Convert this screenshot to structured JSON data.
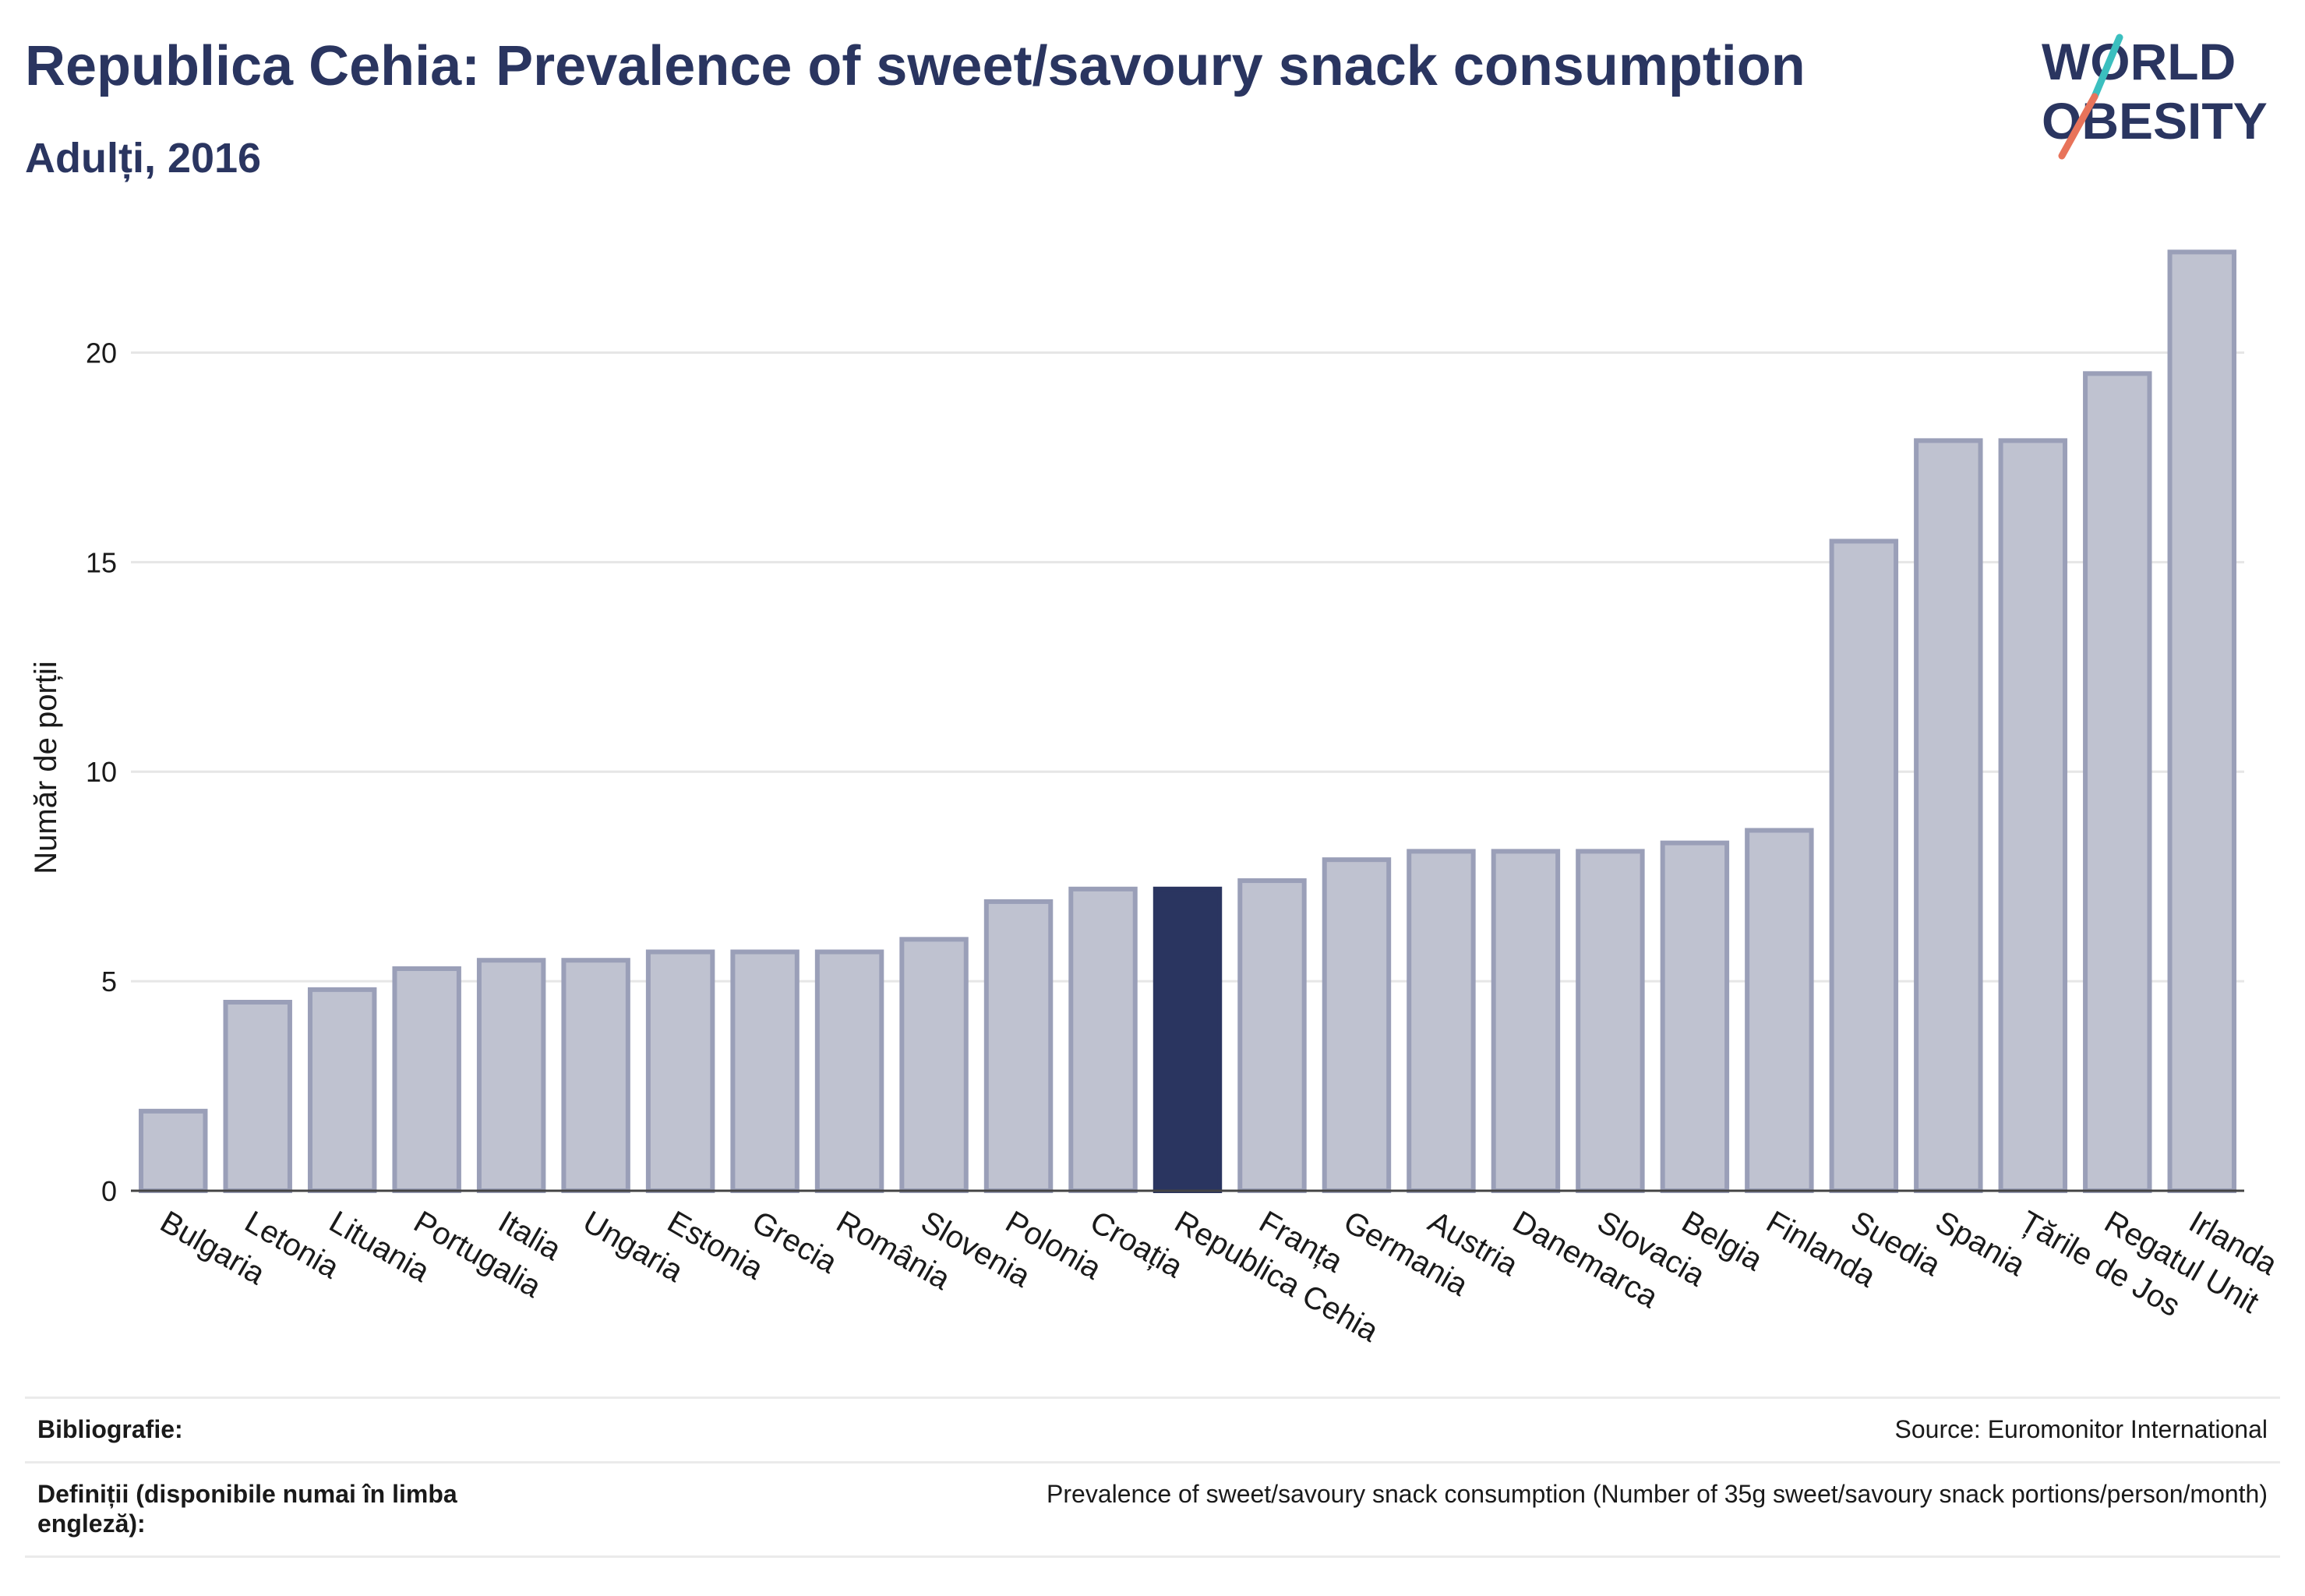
{
  "header": {
    "title": "Republica Cehia: Prevalence of sweet/savoury snack consumption",
    "subtitle": "Adulți, 2016"
  },
  "logo": {
    "line1": "WORLD",
    "line2": "OBESITY",
    "accent_colors": [
      "#3bbfbf",
      "#e8735a"
    ]
  },
  "colors": {
    "bar_default": "#bfc2d0",
    "bar_border": "#9a9fb8",
    "bar_highlight": "#2a3560",
    "text_primary": "#2a3560",
    "grid": "#e6e6e6"
  },
  "chart_data": {
    "type": "bar",
    "title": "Republica Cehia: Prevalence of sweet/savoury snack consumption",
    "subtitle": "Adulți, 2016",
    "ylabel": "Număr de porții",
    "xlabel": "",
    "ylim": [
      0,
      22.5
    ],
    "yticks": [
      0,
      5,
      10,
      15,
      20
    ],
    "grid": true,
    "highlight": "Republica Cehia",
    "categories": [
      "Bulgaria",
      "Letonia",
      "Lituania",
      "Portugalia",
      "Italia",
      "Ungaria",
      "Estonia",
      "Grecia",
      "România",
      "Slovenia",
      "Polonia",
      "Croația",
      "Republica Cehia",
      "Franța",
      "Germania",
      "Austria",
      "Danemarca",
      "Slovacia",
      "Belgia",
      "Finlanda",
      "Suedia",
      "Spania",
      "Țările de Jos",
      "Regatul Unit",
      "Irlanda"
    ],
    "values": [
      1.9,
      4.5,
      4.8,
      5.3,
      5.5,
      5.5,
      5.7,
      5.7,
      5.7,
      6.0,
      6.9,
      7.2,
      7.2,
      7.4,
      7.9,
      8.1,
      8.1,
      8.1,
      8.3,
      8.6,
      15.5,
      17.9,
      17.9,
      19.5,
      22.4
    ]
  },
  "footer": {
    "bibliography_label": "Bibliografie:",
    "bibliography_value": "Source: Euromonitor International",
    "definitions_label": "Definiții (disponibile numai în limba engleză):",
    "definitions_value": "Prevalence of sweet/savoury snack consumption (Number of 35g sweet/savoury snack portions/person/month)"
  }
}
